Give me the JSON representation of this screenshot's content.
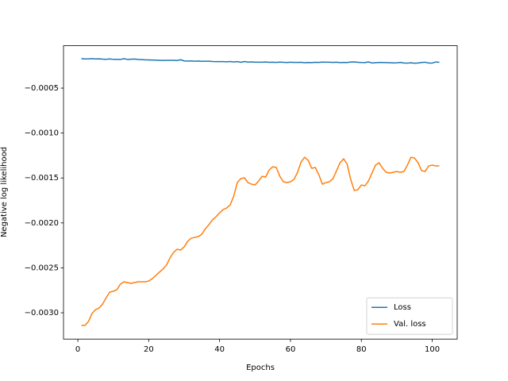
{
  "chart_data": {
    "type": "line",
    "xlabel": "Epochs",
    "ylabel": "Negative log likelihood",
    "x": [
      1,
      2,
      3,
      4,
      5,
      6,
      7,
      8,
      9,
      10,
      11,
      12,
      13,
      14,
      15,
      16,
      17,
      18,
      19,
      20,
      21,
      22,
      23,
      24,
      25,
      26,
      27,
      28,
      29,
      30,
      31,
      32,
      33,
      34,
      35,
      36,
      37,
      38,
      39,
      40,
      41,
      42,
      43,
      44,
      45,
      46,
      47,
      48,
      49,
      50,
      51,
      52,
      53,
      54,
      55,
      56,
      57,
      58,
      59,
      60,
      61,
      62,
      63,
      64,
      65,
      66,
      67,
      68,
      69,
      70,
      71,
      72,
      73,
      74,
      75,
      76,
      77,
      78,
      79,
      80,
      81,
      82,
      83,
      84,
      85,
      86,
      87,
      88,
      89,
      90,
      91,
      92,
      93,
      94,
      95,
      96,
      97,
      98,
      99,
      100,
      101,
      102
    ],
    "series": [
      {
        "name": "Loss",
        "color": "#1f77b4",
        "values": [
          -0.000172,
          -0.000175,
          -0.000174,
          -0.000172,
          -0.000175,
          -0.000174,
          -0.000177,
          -0.000179,
          -0.000175,
          -0.000179,
          -0.00018,
          -0.000181,
          -0.000172,
          -0.000181,
          -0.000178,
          -0.000176,
          -0.000181,
          -0.000183,
          -0.000185,
          -0.000186,
          -0.000187,
          -0.000188,
          -0.00019,
          -0.000192,
          -0.000191,
          -0.000191,
          -0.00019,
          -0.000193,
          -0.000184,
          -0.000197,
          -0.000199,
          -0.000197,
          -0.0002,
          -0.000198,
          -0.000202,
          -0.000201,
          -0.0002,
          -0.000204,
          -0.000205,
          -0.000205,
          -0.000205,
          -0.000207,
          -0.000204,
          -0.000208,
          -0.000205,
          -0.000213,
          -0.000204,
          -0.00021,
          -0.000208,
          -0.000212,
          -0.000211,
          -0.000211,
          -0.000209,
          -0.000213,
          -0.000211,
          -0.000214,
          -0.00021,
          -0.000213,
          -0.000215,
          -0.000212,
          -0.000214,
          -0.000214,
          -0.000213,
          -0.000217,
          -0.000215,
          -0.000216,
          -0.000213,
          -0.000214,
          -0.00021,
          -0.000211,
          -0.000211,
          -0.000214,
          -0.000212,
          -0.000216,
          -0.000214,
          -0.000215,
          -0.000209,
          -0.000208,
          -0.000213,
          -0.000215,
          -0.000216,
          -0.000208,
          -0.00022,
          -0.000217,
          -0.000214,
          -0.000215,
          -0.000216,
          -0.000217,
          -0.000219,
          -0.000218,
          -0.000214,
          -0.00022,
          -0.000222,
          -0.000218,
          -0.000223,
          -0.00022,
          -0.000215,
          -0.000212,
          -0.00022,
          -0.000221,
          -0.000209,
          -0.000213
        ]
      },
      {
        "name": "Val. loss",
        "color": "#ff7f0e",
        "values": [
          -0.003141,
          -0.003141,
          -0.003097,
          -0.003009,
          -0.002965,
          -0.002947,
          -0.002903,
          -0.002832,
          -0.00277,
          -0.002761,
          -0.002744,
          -0.002682,
          -0.002655,
          -0.002664,
          -0.002673,
          -0.002664,
          -0.002655,
          -0.002655,
          -0.002655,
          -0.002647,
          -0.00262,
          -0.002585,
          -0.002549,
          -0.002514,
          -0.00247,
          -0.00239,
          -0.002329,
          -0.002293,
          -0.002302,
          -0.002267,
          -0.002205,
          -0.00217,
          -0.002161,
          -0.002152,
          -0.002125,
          -0.002064,
          -0.002019,
          -0.001966,
          -0.001931,
          -0.001887,
          -0.001852,
          -0.001834,
          -0.001799,
          -0.001701,
          -0.001551,
          -0.001507,
          -0.001498,
          -0.001551,
          -0.001569,
          -0.001578,
          -0.001534,
          -0.001481,
          -0.001489,
          -0.00141,
          -0.001375,
          -0.001383,
          -0.001481,
          -0.001542,
          -0.001551,
          -0.001542,
          -0.001516,
          -0.001436,
          -0.001322,
          -0.001269,
          -0.001304,
          -0.001392,
          -0.001383,
          -0.001463,
          -0.001569,
          -0.001551,
          -0.001542,
          -0.001507,
          -0.001419,
          -0.00133,
          -0.001286,
          -0.001348,
          -0.001516,
          -0.00164,
          -0.001631,
          -0.001578,
          -0.001587,
          -0.001534,
          -0.001445,
          -0.001357,
          -0.00133,
          -0.001392,
          -0.001436,
          -0.001445,
          -0.001436,
          -0.001428,
          -0.001436,
          -0.001428,
          -0.001357,
          -0.001269,
          -0.001278,
          -0.00133,
          -0.001419,
          -0.001428,
          -0.001366,
          -0.001357,
          -0.001366,
          -0.001366
        ]
      }
    ],
    "xlim": [
      -4.05,
      107.05
    ],
    "ylim": [
      -0.003293,
      -2.8e-05
    ],
    "xticks": [
      0,
      20,
      40,
      60,
      80,
      100
    ],
    "yticks": [
      {
        "value": -0.003,
        "label": "−0.0030"
      },
      {
        "value": -0.0025,
        "label": "−0.0025"
      },
      {
        "value": -0.002,
        "label": "−0.0020"
      },
      {
        "value": -0.0015,
        "label": "−0.0015"
      },
      {
        "value": -0.001,
        "label": "−0.0010"
      },
      {
        "value": -0.0005,
        "label": "−0.0005"
      }
    ],
    "legend": "lower right"
  }
}
